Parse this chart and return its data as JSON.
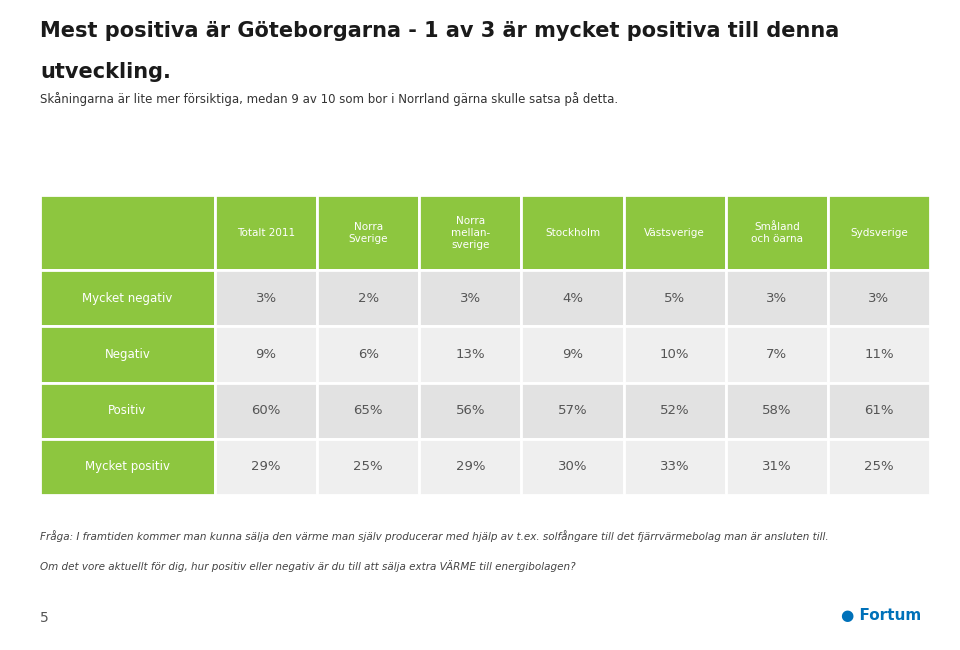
{
  "title_line1": "Mest positiva är Göteborgarna - 1 av 3 är mycket positiva till denna",
  "title_line2": "utveckling.",
  "subtitle": "Skåningarna är lite mer försiktiga, medan 9 av 10 som bor i Norrland gärna skulle satsa på detta.",
  "columns": [
    "Totalt 2011",
    "Norra\nSverige",
    "Norra\nmellan-\nsverige",
    "Stockholm",
    "Västsverige",
    "Småland\noch öarna",
    "Sydsverige"
  ],
  "rows": [
    {
      "label": "Mycket negativ",
      "values": [
        "3%",
        "2%",
        "3%",
        "4%",
        "5%",
        "3%",
        "3%"
      ],
      "label_bg": "#8dc63f",
      "row_bg": "#e2e2e2"
    },
    {
      "label": "Negativ",
      "values": [
        "9%",
        "6%",
        "13%",
        "9%",
        "10%",
        "7%",
        "11%"
      ],
      "label_bg": "#8dc63f",
      "row_bg": "#efefef"
    },
    {
      "label": "Positiv",
      "values": [
        "60%",
        "65%",
        "56%",
        "57%",
        "52%",
        "58%",
        "61%"
      ],
      "label_bg": "#8dc63f",
      "row_bg": "#e2e2e2"
    },
    {
      "label": "Mycket positiv",
      "values": [
        "29%",
        "25%",
        "29%",
        "30%",
        "33%",
        "31%",
        "25%"
      ],
      "label_bg": "#8dc63f",
      "row_bg": "#efefef"
    }
  ],
  "header_bg": "#8dc63f",
  "header_text_color": "#ffffff",
  "label_text_color": "#ffffff",
  "value_text_color": "#555555",
  "footer_text1": "Fråga: I framtiden kommer man kunna sälja den värme man själv producerar med hjälp av t.ex. solfångare till det fjärrvärmebolag man är ansluten till.",
  "footer_text2": "Om det vore aktuellt för dig, hur positiv eller negativ är du till att sälja extra VÄRME till energibolagen?",
  "page_number": "5",
  "bg_color": "#ffffff"
}
